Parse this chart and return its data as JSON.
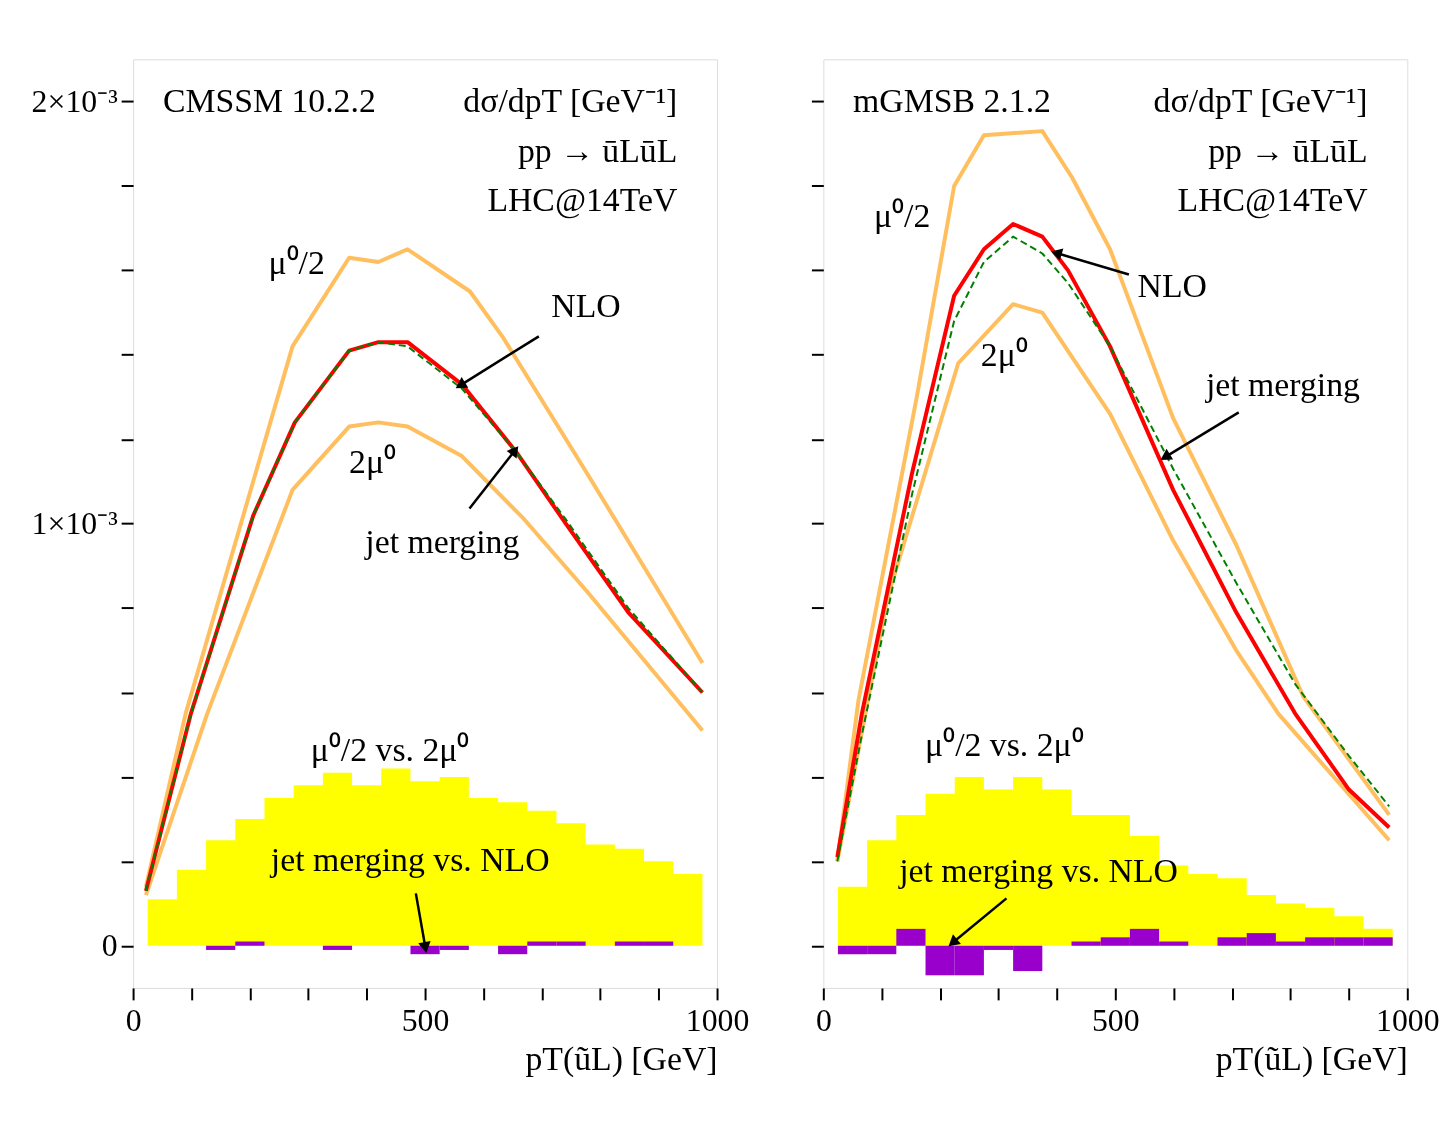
{
  "chart_data": [
    {
      "type": "line",
      "title": "CMSSM 10.2.2",
      "xlabel": "pT(ũL) [GeV]",
      "tick_labels": "xy",
      "grid": false,
      "xlim": [
        0,
        1000
      ],
      "xticks": [
        0,
        {
          "value": 100,
          "label": null
        },
        {
          "value": 200,
          "label": null
        },
        {
          "value": 300,
          "label": null
        },
        {
          "value": 400,
          "label": null
        },
        500,
        {
          "value": 600,
          "label": null
        },
        {
          "value": 700,
          "label": null
        },
        {
          "value": 800,
          "label": null
        },
        {
          "value": 900,
          "label": null
        },
        1000
      ],
      "ylim": [
        -0.0001,
        0.0021
      ],
      "yticks": [
        0,
        {
          "value": 0.0002,
          "label": null
        },
        {
          "value": 0.0004,
          "label": null
        },
        {
          "value": 0.0006,
          "label": null
        },
        {
          "value": 0.0008,
          "label": null
        },
        {
          "value": 0.001,
          "label": "1×10⁻³"
        },
        {
          "value": 0.0012,
          "label": null
        },
        {
          "value": 0.0014,
          "label": null
        },
        {
          "value": 0.0016,
          "label": null
        },
        {
          "value": 0.0018,
          "label": null
        },
        {
          "value": 0.002,
          "label": "2×10⁻³"
        }
      ],
      "annotations": [
        "dσ/dpT [GeV⁻¹]",
        "pp → ūLūL",
        "LHC@14TeV",
        "μ⁰/2",
        "2μ⁰",
        "μ⁰/2 vs. 2μ⁰",
        {
          "text": "NLO",
          "x": 563,
          "y": 0.00133
        },
        {
          "text": "jet merging",
          "x": 652,
          "y": 0.00117
        },
        {
          "text": "jet merging vs. NLO",
          "x": 500,
          "y": 0
        }
      ],
      "series": [
        {
          "type": "area",
          "color": "#ffff00",
          "x": [
            25,
            75,
            125,
            175,
            225,
            275,
            325,
            375,
            425,
            475,
            525,
            575,
            625,
            675,
            725,
            775,
            825,
            875,
            925,
            975
          ],
          "values": [
            0.00011,
            0.00018,
            0.00025,
            0.0003,
            0.00035,
            0.00038,
            0.00041,
            0.00038,
            0.00042,
            0.00039,
            0.0004,
            0.00035,
            0.00034,
            0.00032,
            0.00029,
            0.00024,
            0.00023,
            0.0002,
            0.00017,
            0.00017
          ]
        },
        {
          "type": "histogram",
          "color": "#9900cc",
          "bins": [
            25,
            75,
            125,
            175,
            225,
            275,
            325,
            375,
            425,
            475,
            525,
            575,
            625,
            675,
            725,
            775,
            825,
            875,
            925,
            975
          ],
          "values": [
            0,
            0,
            -1e-05,
            1e-05,
            0,
            0,
            -1e-05,
            0,
            0,
            -2e-05,
            -1e-05,
            0,
            -2e-05,
            1e-05,
            1e-05,
            0,
            1e-05,
            1e-05,
            0
          ]
        },
        {
          "color": "#ffbf5f",
          "x": [
            22,
            90,
            273,
            370,
            420,
            470,
            577,
            634,
            777,
            975
          ],
          "values": [
            0.00014,
            0.00055,
            0.00142,
            0.00163,
            0.00162,
            0.00165,
            0.00155,
            0.00144,
            0.00112,
            0.00067
          ]
        },
        {
          "color": "#ffbf5f",
          "x": [
            22,
            127,
            273,
            370,
            420,
            470,
            563,
            670,
            777,
            975
          ],
          "values": [
            0.00012,
            0.00055,
            0.00108,
            0.00123,
            0.00124,
            0.00123,
            0.00116,
            0.00101,
            0.00084,
            0.00051
          ]
        },
        {
          "color": "#ff0000",
          "x": [
            22,
            99,
            206,
            277,
            370,
            420,
            470,
            563,
            656,
            741,
            848,
            975
          ],
          "values": [
            0.00013,
            0.00055,
            0.00102,
            0.00124,
            0.00141,
            0.00143,
            0.00143,
            0.00133,
            0.00117,
            0.001,
            0.00079,
            0.0006
          ]
        },
        {
          "color": "#008000",
          "line_style": "dashed",
          "x": [
            22,
            99,
            206,
            277,
            370,
            420,
            470,
            563,
            656,
            741,
            848,
            975
          ],
          "values": [
            0.00013,
            0.00055,
            0.00102,
            0.00124,
            0.00141,
            0.00143,
            0.00142,
            0.00132,
            0.00117,
            0.00101,
            0.0008,
            0.0006
          ]
        }
      ]
    },
    {
      "type": "line",
      "title": "mGMSB 2.1.2",
      "xlabel": "pT(ũL) [GeV]",
      "tick_labels": "x",
      "grid": false,
      "xlim": [
        0,
        1000
      ],
      "xticks": [
        0,
        {
          "value": 100,
          "label": null
        },
        {
          "value": 200,
          "label": null
        },
        {
          "value": 300,
          "label": null
        },
        {
          "value": 400,
          "label": null
        },
        500,
        {
          "value": 600,
          "label": null
        },
        {
          "value": 700,
          "label": null
        },
        {
          "value": 800,
          "label": null
        },
        {
          "value": 900,
          "label": null
        },
        1000
      ],
      "ylim": [
        -0.0001,
        0.0021
      ],
      "yticks": [
        {
          "value": 0,
          "label": null
        },
        {
          "value": 0.0002,
          "label": null
        },
        {
          "value": 0.0004,
          "label": null
        },
        {
          "value": 0.0006,
          "label": null
        },
        {
          "value": 0.0008,
          "label": null
        },
        {
          "value": 0.001,
          "label": null
        },
        {
          "value": 0.0012,
          "label": null
        },
        {
          "value": 0.0014,
          "label": null
        },
        {
          "value": 0.0016,
          "label": null
        },
        {
          "value": 0.0018,
          "label": null
        },
        {
          "value": 0.002,
          "label": null
        }
      ],
      "annotations": [
        "dσ/dpT [GeV⁻¹]",
        "pp → ūLūL",
        "LHC@14TeV",
        "μ⁰/2",
        "2μ⁰",
        "μ⁰/2 vs. 2μ⁰",
        {
          "text": "NLO",
          "x": 402,
          "y": 0.00164
        },
        {
          "text": "jet merging",
          "x": 588,
          "y": 0.00116
        },
        {
          "text": "jet merging vs. NLO",
          "x": 224,
          "y": 1e-05
        }
      ],
      "series": [
        {
          "type": "area",
          "color": "#ffff00",
          "x": [
            25,
            75,
            125,
            175,
            225,
            275,
            325,
            375,
            425,
            475,
            525,
            575,
            625,
            675,
            725,
            775,
            825,
            875,
            925,
            975
          ],
          "values": [
            0.00014,
            0.00025,
            0.00031,
            0.00036,
            0.0004,
            0.00037,
            0.0004,
            0.00037,
            0.00031,
            0.00031,
            0.00026,
            0.00019,
            0.00017,
            0.00016,
            0.00012,
            0.0001,
            9e-05,
            7e-05,
            4e-05,
            4e-05
          ]
        },
        {
          "type": "histogram",
          "color": "#9900cc",
          "bins": [
            25,
            75,
            125,
            175,
            225,
            275,
            325,
            375,
            425,
            475,
            525,
            575,
            625,
            675,
            725,
            775,
            825,
            875,
            925,
            975
          ],
          "values": [
            -2e-05,
            -2e-05,
            4e-05,
            -7e-05,
            -7e-05,
            -1e-05,
            -6e-05,
            0,
            1e-05,
            2e-05,
            4e-05,
            1e-05,
            0,
            2e-05,
            3e-05,
            1e-05,
            2e-05,
            2e-05,
            2e-05
          ]
        },
        {
          "color": "#ffbf5f",
          "x": [
            24,
            60,
            160,
            224,
            275,
            375,
            426,
            491,
            599,
            707,
            822,
            969
          ],
          "values": [
            0.0002,
            0.00058,
            0.0013,
            0.0018,
            0.00192,
            0.00193,
            0.00182,
            0.00165,
            0.00125,
            0.00095,
            0.00059,
            0.00031
          ]
        },
        {
          "color": "#ffbf5f",
          "x": [
            24,
            109,
            231,
            325,
            375,
            491,
            599,
            707,
            779,
            969
          ],
          "values": [
            0.0002,
            0.00082,
            0.00138,
            0.00152,
            0.0015,
            0.00126,
            0.00096,
            0.0007,
            0.00055,
            0.00025
          ]
        },
        {
          "color": "#ff0000",
          "x": [
            24,
            66,
            152,
            224,
            275,
            325,
            375,
            419,
            491,
            599,
            707,
            808,
            900,
            969
          ],
          "values": [
            0.00021,
            0.00055,
            0.00112,
            0.00154,
            0.00165,
            0.00171,
            0.00168,
            0.0016,
            0.00142,
            0.00108,
            0.00079,
            0.00055,
            0.00037,
            0.00028
          ]
        },
        {
          "color": "#008000",
          "line_style": "dashed",
          "x": [
            24,
            66,
            152,
            224,
            275,
            325,
            375,
            419,
            491,
            599,
            707,
            808,
            900,
            969
          ],
          "values": [
            0.0002,
            0.0005,
            0.00107,
            0.00148,
            0.00162,
            0.00168,
            0.00164,
            0.00157,
            0.00142,
            0.00113,
            0.00086,
            0.00062,
            0.00045,
            0.00033
          ]
        }
      ]
    }
  ]
}
